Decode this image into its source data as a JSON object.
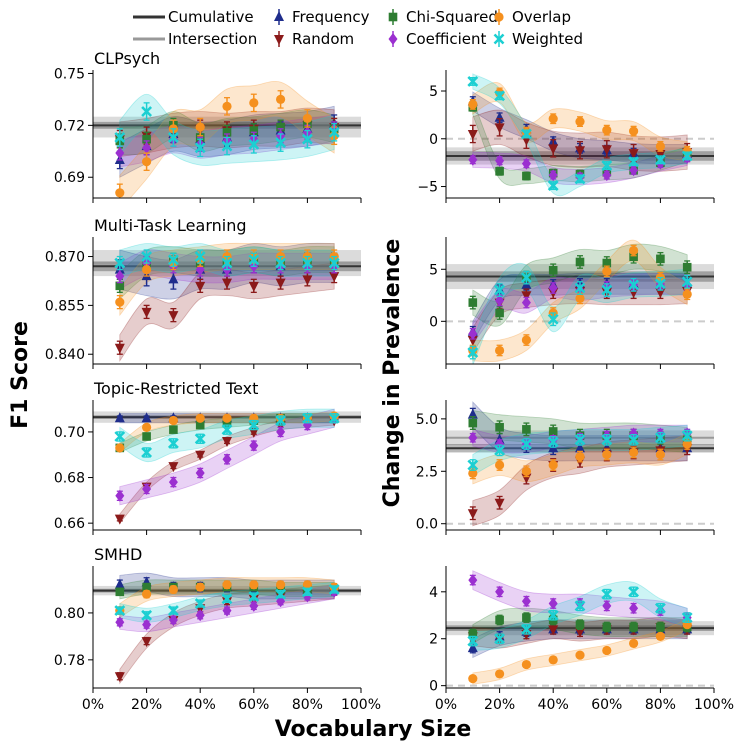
{
  "figure": {
    "ylabel_left": "F1 Score",
    "ylabel_right": "Change in Prevalence",
    "xlabel": "Vocabulary Size",
    "x_ticks": [
      0,
      20,
      40,
      60,
      80,
      100
    ],
    "x_tick_labels": [
      "0%",
      "20%",
      "40%",
      "60%",
      "80%",
      "100%"
    ]
  },
  "legend": {
    "entries": [
      {
        "key": "cumulative",
        "label": "Cumulative",
        "kind": "line",
        "color": "#333333"
      },
      {
        "key": "frequency",
        "label": "Frequency",
        "kind": "marker",
        "marker": "triangle-up",
        "color": "#1f2d8c"
      },
      {
        "key": "chi",
        "label": "Chi-Squared",
        "kind": "marker",
        "marker": "square",
        "color": "#2e7d32"
      },
      {
        "key": "overlap",
        "label": "Overlap",
        "kind": "marker",
        "marker": "circle",
        "color": "#f5901e"
      },
      {
        "key": "intersection",
        "label": "Intersection",
        "kind": "line",
        "color": "#999999"
      },
      {
        "key": "random",
        "label": "Random",
        "kind": "marker",
        "marker": "triangle-down",
        "color": "#8b1a1a"
      },
      {
        "key": "coefficient",
        "label": "Coefficient",
        "kind": "marker",
        "marker": "diamond",
        "color": "#9b30d0"
      },
      {
        "key": "weighted",
        "label": "Weighted",
        "kind": "marker",
        "marker": "x",
        "color": "#1ccfd2"
      }
    ]
  },
  "chart_data": [
    {
      "type": "line",
      "panel": "f1",
      "title": "CLPsych",
      "x": [
        10,
        20,
        30,
        40,
        50,
        60,
        70,
        80,
        90
      ],
      "ylim": [
        0.678,
        0.752
      ],
      "yticks": [
        0.69,
        0.72,
        0.75
      ],
      "ytick_labels": [
        "0.69",
        "0.72",
        "0.75"
      ],
      "baselines": {
        "cumulative": 0.72,
        "intersection": 0.719,
        "cumulative_band": 0.002,
        "intersection_band": 0.006
      },
      "series": [
        {
          "key": "frequency",
          "values": [
            0.7,
            0.708,
            0.715,
            0.712,
            0.713,
            0.716,
            0.717,
            0.718,
            0.721
          ],
          "err": 0.005
        },
        {
          "key": "random",
          "values": [
            0.712,
            0.714,
            0.717,
            0.718,
            0.717,
            0.718,
            0.718,
            0.72,
            0.719
          ],
          "err": 0.005
        },
        {
          "key": "chi",
          "values": [
            0.711,
            0.712,
            0.72,
            0.713,
            0.716,
            0.717,
            0.719,
            0.721,
            0.718
          ],
          "err": 0.004
        },
        {
          "key": "coefficient",
          "values": [
            0.704,
            0.707,
            0.712,
            0.709,
            0.711,
            0.712,
            0.714,
            0.716,
            0.718
          ],
          "err": 0.004
        },
        {
          "key": "overlap",
          "values": [
            0.681,
            0.699,
            0.718,
            0.719,
            0.731,
            0.733,
            0.735,
            0.724,
            0.714
          ],
          "err": 0.005
        },
        {
          "key": "weighted",
          "values": [
            0.713,
            0.728,
            0.713,
            0.707,
            0.708,
            0.709,
            0.71,
            0.712,
            0.716
          ],
          "err": 0.005
        }
      ]
    },
    {
      "type": "line",
      "panel": "prev",
      "title": "",
      "x": [
        10,
        20,
        30,
        40,
        50,
        60,
        70,
        80,
        90
      ],
      "ylim": [
        -6.2,
        7.2
      ],
      "yticks": [
        -5,
        0,
        5
      ],
      "ytick_labels": [
        "−5",
        "0",
        "5"
      ],
      "baselines": {
        "cumulative": -1.8,
        "intersection": -1.8,
        "cumulative_band": 0.5,
        "intersection_band": 0.9
      },
      "series": [
        {
          "key": "frequency",
          "values": [
            3.9,
            2.2,
            1.0,
            -0.3,
            -1.0,
            -1.2,
            -1.5,
            -1.6,
            -1.6
          ],
          "err": 0.5
        },
        {
          "key": "random",
          "values": [
            0.5,
            1.2,
            -0.1,
            -1.0,
            -1.2,
            -1.1,
            -1.5,
            -1.6,
            -1.4
          ],
          "err": 0.9
        },
        {
          "key": "chi",
          "values": [
            3.3,
            -3.4,
            -3.9,
            -3.6,
            -3.7,
            -3.5,
            -3.3,
            -2.5,
            -1.6
          ],
          "err": 0.4
        },
        {
          "key": "coefficient",
          "values": [
            -2.2,
            -2.3,
            -2.6,
            -3.8,
            -4.0,
            -3.8,
            -3.3,
            -2.6,
            -2.0
          ],
          "err": 0.4
        },
        {
          "key": "overlap",
          "values": [
            3.6,
            4.8,
            0.7,
            2.1,
            1.8,
            0.9,
            0.8,
            -0.8,
            -1.3
          ],
          "err": 0.5
        },
        {
          "key": "weighted",
          "values": [
            6.0,
            4.5,
            0.5,
            -4.9,
            -4.2,
            -2.8,
            -2.4,
            -2.2,
            -1.8
          ],
          "err": 0.4
        }
      ]
    },
    {
      "type": "line",
      "panel": "f1",
      "title": "Multi-Task Learning",
      "x": [
        10,
        20,
        30,
        40,
        50,
        60,
        70,
        80,
        90
      ],
      "ylim": [
        0.837,
        0.876
      ],
      "yticks": [
        0.84,
        0.855,
        0.87
      ],
      "ytick_labels": [
        "0.840",
        "0.855",
        "0.870"
      ],
      "baselines": {
        "cumulative": 0.867,
        "intersection": 0.868,
        "cumulative_band": 0.0015,
        "intersection_band": 0.004
      },
      "series": [
        {
          "key": "frequency",
          "values": [
            0.866,
            0.864,
            0.863,
            0.866,
            0.866,
            0.868,
            0.867,
            0.868,
            0.868
          ],
          "err": 0.003
        },
        {
          "key": "random",
          "values": [
            0.842,
            0.853,
            0.852,
            0.861,
            0.862,
            0.861,
            0.862,
            0.863,
            0.864
          ],
          "err": 0.002
        },
        {
          "key": "chi",
          "values": [
            0.861,
            0.868,
            0.869,
            0.868,
            0.868,
            0.869,
            0.868,
            0.869,
            0.869
          ],
          "err": 0.002
        },
        {
          "key": "coefficient",
          "values": [
            0.864,
            0.868,
            0.867,
            0.866,
            0.866,
            0.867,
            0.867,
            0.867,
            0.867
          ],
          "err": 0.002
        },
        {
          "key": "overlap",
          "values": [
            0.856,
            0.866,
            0.868,
            0.869,
            0.87,
            0.87,
            0.87,
            0.87,
            0.87
          ],
          "err": 0.002
        },
        {
          "key": "weighted",
          "values": [
            0.868,
            0.87,
            0.869,
            0.87,
            0.868,
            0.869,
            0.868,
            0.868,
            0.868
          ],
          "err": 0.002
        }
      ]
    },
    {
      "type": "line",
      "panel": "prev",
      "title": "",
      "x": [
        10,
        20,
        30,
        40,
        50,
        60,
        70,
        80,
        90
      ],
      "ylim": [
        -4.1,
        8.1
      ],
      "yticks": [
        0,
        5
      ],
      "ytick_labels": [
        "0",
        "5"
      ],
      "baselines": {
        "cumulative": 4.3,
        "intersection": 4.3,
        "cumulative_band": 0.5,
        "intersection_band": 1.2
      },
      "series": [
        {
          "key": "frequency",
          "values": [
            -1.0,
            3.0,
            3.5,
            3.5,
            3.6,
            3.6,
            3.6,
            3.6,
            3.6
          ],
          "err": 0.5
        },
        {
          "key": "random",
          "values": [
            -1.8,
            1.8,
            2.5,
            2.8,
            2.9,
            2.8,
            2.8,
            2.8,
            2.9
          ],
          "err": 0.6
        },
        {
          "key": "chi",
          "values": [
            1.8,
            0.8,
            4.2,
            4.9,
            5.7,
            5.6,
            6.2,
            6.0,
            5.2
          ],
          "err": 0.6
        },
        {
          "key": "coefficient",
          "values": [
            -1.2,
            2.0,
            1.8,
            3.2,
            3.0,
            3.3,
            3.5,
            3.6,
            3.5
          ],
          "err": 0.5
        },
        {
          "key": "overlap",
          "values": [
            -2.8,
            -2.8,
            -1.8,
            0.8,
            2.2,
            4.8,
            6.8,
            4.2,
            2.6
          ],
          "err": 0.5
        },
        {
          "key": "weighted",
          "values": [
            -3.0,
            3.0,
            4.2,
            0.2,
            3.2,
            3.0,
            3.5,
            3.6,
            3.8
          ],
          "err": 0.6
        }
      ]
    },
    {
      "type": "line",
      "panel": "f1",
      "title": "Topic-Restricted Text",
      "x": [
        10,
        20,
        30,
        40,
        50,
        60,
        70,
        80,
        90
      ],
      "ylim": [
        0.657,
        0.714
      ],
      "yticks": [
        0.66,
        0.68,
        0.7
      ],
      "ytick_labels": [
        "0.66",
        "0.68",
        "0.70"
      ],
      "baselines": {
        "cumulative": 0.7065,
        "intersection": 0.7065,
        "cumulative_band": 0.0008,
        "intersection_band": 0.0025
      },
      "series": [
        {
          "key": "frequency",
          "values": [
            0.706,
            0.706,
            0.706,
            0.706,
            0.706,
            0.706,
            0.706,
            0.706,
            0.706
          ],
          "err": 0.001
        },
        {
          "key": "random",
          "values": [
            0.662,
            0.676,
            0.685,
            0.69,
            0.696,
            0.7,
            0.703,
            0.704,
            0.705
          ],
          "err": 0.001
        },
        {
          "key": "chi",
          "values": [
            0.693,
            0.698,
            0.701,
            0.703,
            0.704,
            0.705,
            0.706,
            0.706,
            0.706
          ],
          "err": 0.001
        },
        {
          "key": "coefficient",
          "values": [
            0.672,
            0.675,
            0.678,
            0.682,
            0.688,
            0.694,
            0.7,
            0.703,
            0.706
          ],
          "err": 0.002
        },
        {
          "key": "overlap",
          "values": [
            0.693,
            0.702,
            0.705,
            0.706,
            0.706,
            0.706,
            0.706,
            0.706,
            0.707
          ],
          "err": 0.001
        },
        {
          "key": "weighted",
          "values": [
            0.698,
            0.691,
            0.695,
            0.697,
            0.701,
            0.703,
            0.705,
            0.706,
            0.706
          ],
          "err": 0.002
        }
      ]
    },
    {
      "type": "line",
      "panel": "prev",
      "title": "",
      "x": [
        10,
        20,
        30,
        40,
        50,
        60,
        70,
        80,
        90
      ],
      "ylim": [
        -0.3,
        5.9
      ],
      "yticks": [
        0,
        2.5,
        5
      ],
      "ytick_labels": [
        "0.0",
        "2.5",
        "5.0"
      ],
      "baselines": {
        "cumulative": 3.6,
        "intersection": 4.1,
        "cumulative_band": 0.2,
        "intersection_band": 0.35
      },
      "series": [
        {
          "key": "frequency",
          "values": [
            5.2,
            4.0,
            3.7,
            3.6,
            3.6,
            3.6,
            3.6,
            3.6,
            3.6
          ],
          "err": 0.3
        },
        {
          "key": "random",
          "values": [
            0.5,
            1.0,
            2.2,
            2.8,
            3.0,
            3.3,
            3.4,
            3.5,
            3.6
          ],
          "err": 0.3
        },
        {
          "key": "chi",
          "values": [
            4.8,
            4.6,
            4.5,
            4.4,
            4.2,
            4.2,
            4.2,
            4.1,
            4.0
          ],
          "err": 0.3
        },
        {
          "key": "coefficient",
          "values": [
            4.1,
            3.8,
            3.8,
            4.0,
            4.1,
            4.2,
            4.3,
            4.3,
            4.3
          ],
          "err": 0.2
        },
        {
          "key": "overlap",
          "values": [
            2.4,
            2.8,
            2.5,
            2.8,
            3.2,
            3.3,
            3.4,
            3.3,
            3.8
          ],
          "err": 0.25
        },
        {
          "key": "weighted",
          "values": [
            2.8,
            3.5,
            3.8,
            3.9,
            4.0,
            4.0,
            4.0,
            4.1,
            4.2
          ],
          "err": 0.25
        }
      ]
    },
    {
      "type": "line",
      "panel": "f1",
      "title": "SMHD",
      "x": [
        10,
        20,
        30,
        40,
        50,
        60,
        70,
        80,
        90
      ],
      "ylim": [
        0.768,
        0.82
      ],
      "yticks": [
        0.78,
        0.8
      ],
      "ytick_labels": [
        "0.78",
        "0.80"
      ],
      "baselines": {
        "cumulative": 0.8095,
        "intersection": 0.8095,
        "cumulative_band": 0.0008,
        "intersection_band": 0.002
      },
      "series": [
        {
          "key": "frequency",
          "values": [
            0.812,
            0.813,
            0.811,
            0.811,
            0.811,
            0.81,
            0.81,
            0.81,
            0.81
          ],
          "err": 0.002
        },
        {
          "key": "random",
          "values": [
            0.773,
            0.788,
            0.797,
            0.802,
            0.805,
            0.806,
            0.807,
            0.808,
            0.809
          ],
          "err": 0.0015
        },
        {
          "key": "chi",
          "values": [
            0.809,
            0.811,
            0.811,
            0.811,
            0.811,
            0.811,
            0.81,
            0.81,
            0.81
          ],
          "err": 0.0015
        },
        {
          "key": "coefficient",
          "values": [
            0.796,
            0.795,
            0.797,
            0.799,
            0.801,
            0.803,
            0.805,
            0.807,
            0.809
          ],
          "err": 0.0015
        },
        {
          "key": "overlap",
          "values": [
            0.801,
            0.808,
            0.81,
            0.811,
            0.812,
            0.812,
            0.812,
            0.812,
            0.811
          ],
          "err": 0.0015
        },
        {
          "key": "weighted",
          "values": [
            0.801,
            0.799,
            0.801,
            0.804,
            0.806,
            0.807,
            0.808,
            0.809,
            0.81
          ],
          "err": 0.0015
        }
      ]
    },
    {
      "type": "line",
      "panel": "prev",
      "title": "",
      "x": [
        10,
        20,
        30,
        40,
        50,
        60,
        70,
        80,
        90
      ],
      "ylim": [
        -0.1,
        5.1
      ],
      "yticks": [
        0,
        2,
        4
      ],
      "ytick_labels": [
        "0",
        "2",
        "4"
      ],
      "baselines": {
        "cumulative": 2.45,
        "intersection": 2.45,
        "cumulative_band": 0.12,
        "intersection_band": 0.3
      },
      "series": [
        {
          "key": "frequency",
          "values": [
            1.6,
            2.1,
            2.3,
            2.4,
            2.4,
            2.4,
            2.4,
            2.4,
            2.4
          ],
          "err": 0.2
        },
        {
          "key": "random",
          "values": [
            2.1,
            2.0,
            2.2,
            2.4,
            2.3,
            2.4,
            2.4,
            2.5,
            2.4
          ],
          "err": 0.2
        },
        {
          "key": "chi",
          "values": [
            2.2,
            2.8,
            2.9,
            2.8,
            2.6,
            2.5,
            2.5,
            2.5,
            2.5
          ],
          "err": 0.2
        },
        {
          "key": "coefficient",
          "values": [
            4.5,
            4.0,
            3.6,
            3.5,
            3.5,
            3.4,
            3.3,
            3.2,
            2.9
          ],
          "err": 0.2
        },
        {
          "key": "overlap",
          "values": [
            0.3,
            0.5,
            0.9,
            1.1,
            1.3,
            1.5,
            1.8,
            2.1,
            2.6
          ],
          "err": 0.12
        },
        {
          "key": "weighted",
          "values": [
            1.9,
            2.0,
            2.4,
            3.0,
            3.4,
            3.9,
            4.0,
            3.3,
            2.9
          ],
          "err": 0.2
        }
      ]
    }
  ]
}
